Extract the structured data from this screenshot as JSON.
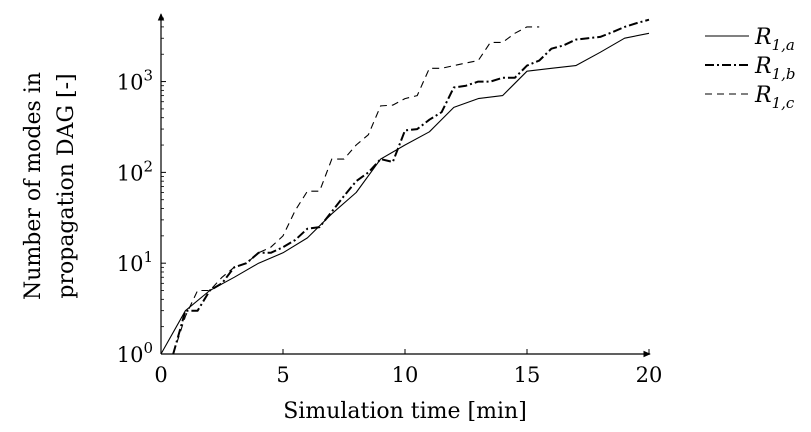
{
  "chart_data": {
    "type": "line",
    "title": "",
    "xlabel": "Simulation time [min]",
    "ylabel_lines": [
      "Number of modes in",
      "propagation DAG [-]"
    ],
    "xlim": [
      0,
      20
    ],
    "ylim_log10": [
      0,
      3.7
    ],
    "y_scale": "log",
    "x_ticks": [
      0,
      5,
      10,
      15,
      20
    ],
    "y_ticks": [
      {
        "exp": 0,
        "base": "10",
        "sup": "0"
      },
      {
        "exp": 1,
        "base": "10",
        "sup": "1"
      },
      {
        "exp": 2,
        "base": "10",
        "sup": "2"
      },
      {
        "exp": 3,
        "base": "10",
        "sup": "3"
      }
    ],
    "grid": false,
    "legend_position": "outside-right",
    "series": [
      {
        "name": "R",
        "sub": "1,a",
        "style": "solid",
        "x": [
          0,
          1,
          2,
          3,
          4,
          5,
          6,
          7,
          8,
          9,
          10,
          11,
          12,
          13,
          14,
          15,
          16,
          17,
          18,
          19,
          20
        ],
        "y": [
          1,
          3,
          5,
          7,
          10,
          13,
          19,
          35,
          60,
          140,
          200,
          280,
          520,
          650,
          700,
          1300,
          1400,
          1500,
          2100,
          3000,
          3400
        ]
      },
      {
        "name": "R",
        "sub": "1,b",
        "style": "dashdot",
        "x": [
          0.5,
          1,
          1.5,
          2,
          2.5,
          3,
          3.5,
          4,
          4.5,
          5,
          5.5,
          6,
          6.5,
          7,
          7.5,
          8,
          8.5,
          9,
          9.5,
          10,
          10.5,
          11,
          11.5,
          12,
          12.5,
          13,
          13.5,
          14,
          14.5,
          15,
          15.5,
          16,
          16.5,
          17,
          17.5,
          18,
          18.5,
          19,
          19.5,
          20
        ],
        "y": [
          1,
          3,
          3,
          5,
          6,
          9,
          10,
          13,
          13,
          15,
          18,
          24,
          25,
          37,
          55,
          80,
          100,
          140,
          130,
          290,
          300,
          380,
          460,
          860,
          900,
          1000,
          1000,
          1100,
          1100,
          1500,
          1700,
          2300,
          2500,
          2900,
          3000,
          3100,
          3500,
          4000,
          4400,
          4800
        ]
      },
      {
        "name": "R",
        "sub": "1,c",
        "style": "dashed",
        "x": [
          0.5,
          1,
          1.5,
          2,
          2.5,
          3,
          3.5,
          4,
          4.5,
          5,
          5.5,
          6,
          6.5,
          7,
          7.5,
          8,
          8.5,
          9,
          9.5,
          10,
          10.5,
          11,
          11.5,
          12,
          12.5,
          13,
          13.5,
          14,
          14.5,
          15,
          15.5
        ],
        "y": [
          1,
          2.6,
          5,
          5,
          7,
          9,
          10,
          13,
          15,
          20,
          38,
          62,
          62,
          140,
          140,
          200,
          260,
          540,
          550,
          650,
          700,
          1400,
          1400,
          1500,
          1600,
          1700,
          2700,
          2700,
          3400,
          4000,
          4000
        ]
      }
    ]
  }
}
